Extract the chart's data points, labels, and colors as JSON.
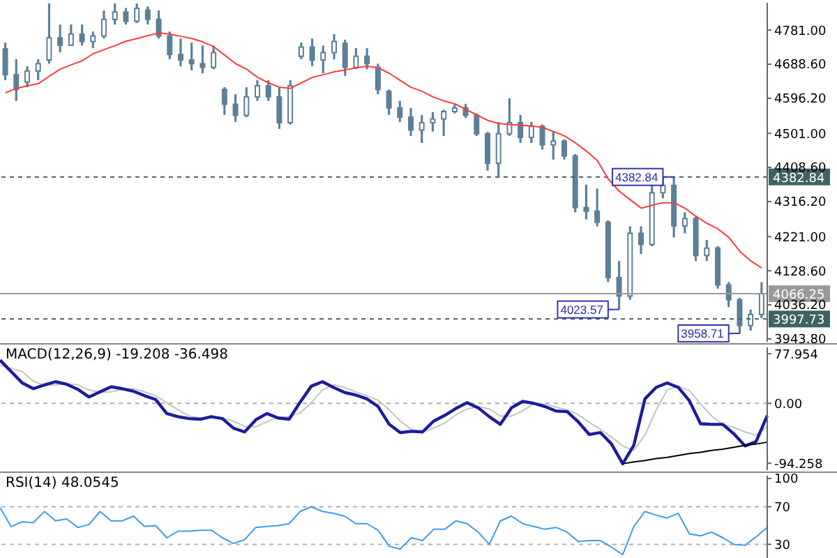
{
  "chart_data": [
    {
      "type": "candlestick",
      "color": "#5b8099",
      "tick_labels": "y",
      "categories": [
        null,
        null,
        null,
        null,
        null,
        null,
        null,
        null,
        null,
        null,
        null,
        null,
        null,
        null,
        null,
        null,
        null,
        null,
        null,
        null,
        null,
        null,
        null,
        null,
        null,
        null,
        null,
        null,
        null,
        null,
        null,
        null,
        null,
        null,
        null,
        null,
        null,
        null,
        null,
        null,
        null,
        null,
        null,
        null,
        null,
        null,
        null,
        null,
        null,
        null,
        null,
        null,
        null,
        null,
        null,
        null,
        null,
        null,
        null,
        null,
        null,
        null,
        null,
        null,
        null,
        null,
        null,
        null,
        null,
        null
      ],
      "ohlc": [
        [
          4730,
          4747,
          4645,
          4660
        ],
        [
          4660,
          4702,
          4589,
          4620
        ],
        [
          4640,
          4683,
          4626,
          4670
        ],
        [
          4670,
          4702,
          4645,
          4690
        ],
        [
          4700,
          4853,
          4690,
          4760
        ],
        [
          4760,
          4796,
          4721,
          4740
        ],
        [
          4740,
          4796,
          4739,
          4770
        ],
        [
          4770,
          4796,
          4739,
          4750
        ],
        [
          4750,
          4777,
          4732,
          4765
        ],
        [
          4765,
          4834,
          4758,
          4810
        ],
        [
          4810,
          4853,
          4796,
          4830
        ],
        [
          4830,
          4841,
          4796,
          4805
        ],
        [
          4805,
          4853,
          4800,
          4840
        ],
        [
          4835,
          4845,
          4796,
          4810
        ],
        [
          4810,
          4834,
          4758,
          4765
        ],
        [
          4765,
          4777,
          4702,
          4715
        ],
        [
          4715,
          4758,
          4683,
          4700
        ],
        [
          4700,
          4747,
          4672,
          4690
        ],
        [
          4690,
          4739,
          4664,
          4680
        ],
        [
          4680,
          4739,
          4675,
          4720
        ],
        [
          4620,
          4626,
          4551,
          4580
        ],
        [
          4580,
          4607,
          4532,
          4550
        ],
        [
          4550,
          4626,
          4545,
          4600
        ],
        [
          4600,
          4645,
          4589,
          4630
        ],
        [
          4630,
          4645,
          4589,
          4600
        ],
        [
          4600,
          4626,
          4513,
          4530
        ],
        [
          4530,
          4645,
          4525,
          4630
        ],
        [
          4710,
          4747,
          4702,
          4735
        ],
        [
          4735,
          4758,
          4683,
          4700
        ],
        [
          4700,
          4739,
          4664,
          4720
        ],
        [
          4720,
          4770,
          4702,
          4750
        ],
        [
          4745,
          4755,
          4657,
          4680
        ],
        [
          4680,
          4732,
          4675,
          4710
        ],
        [
          4710,
          4732,
          4675,
          4690
        ],
        [
          4680,
          4690,
          4607,
          4620
        ],
        [
          4615,
          4620,
          4551,
          4570
        ],
        [
          4570,
          4589,
          4532,
          4545
        ],
        [
          4545,
          4570,
          4494,
          4510
        ],
        [
          4510,
          4551,
          4475,
          4530
        ],
        [
          4530,
          4559,
          4506,
          4540
        ],
        [
          4540,
          4565,
          4494,
          4560
        ],
        [
          4560,
          4581,
          4555,
          4570
        ],
        [
          4570,
          4581,
          4543,
          4550
        ],
        [
          4550,
          4555,
          4494,
          4500
        ],
        [
          4500,
          4505,
          4400,
          4420
        ],
        [
          4420,
          4532,
          4381,
          4500
        ],
        [
          4500,
          4596,
          4494,
          4530
        ],
        [
          4530,
          4551,
          4475,
          4490
        ],
        [
          4490,
          4532,
          4475,
          4520
        ],
        [
          4520,
          4525,
          4457,
          4470
        ],
        [
          4470,
          4506,
          4430,
          4480
        ],
        [
          4480,
          4485,
          4430,
          4440
        ],
        [
          4440,
          4445,
          4287,
          4300
        ],
        [
          4300,
          4362,
          4268,
          4290
        ],
        [
          4290,
          4351,
          4249,
          4260
        ],
        [
          4260,
          4265,
          4098,
          4110
        ],
        [
          4110,
          4155,
          4023.57,
          4060
        ],
        [
          4060,
          4249,
          4050,
          4230
        ],
        [
          4230,
          4249,
          4174,
          4200
        ],
        [
          4200,
          4362,
          4195,
          4340
        ],
        [
          4340,
          4381,
          4325,
          4360
        ],
        [
          4360,
          4382.84,
          4219,
          4250
        ],
        [
          4250,
          4287,
          4230,
          4270
        ],
        [
          4270,
          4275,
          4155,
          4170
        ],
        [
          4170,
          4212,
          4155,
          4190
        ],
        [
          4190,
          4195,
          4080,
          4090
        ],
        [
          4090,
          4098,
          4030,
          4050
        ],
        [
          4050,
          4055,
          3958.71,
          3980
        ],
        [
          3980,
          4023,
          3966,
          4010
        ],
        [
          4010,
          4098,
          4000,
          4066.25
        ]
      ],
      "series": [
        {
          "type": "line",
          "color": "#ff3b3b",
          "values": [
            4611,
            4623,
            4630,
            4636,
            4656,
            4675,
            4687,
            4698,
            4717,
            4728,
            4739,
            4751,
            4758,
            4766,
            4773,
            4770,
            4764,
            4758,
            4749,
            4736,
            4713,
            4690,
            4675,
            4653,
            4638,
            4626,
            4623,
            4638,
            4653,
            4660,
            4668,
            4673,
            4679,
            4683,
            4679,
            4664,
            4645,
            4626,
            4615,
            4600,
            4589,
            4581,
            4566,
            4551,
            4536,
            4528,
            4525,
            4523,
            4521,
            4517,
            4506,
            4494,
            4475,
            4453,
            4427,
            4377,
            4344,
            4321,
            4298,
            4306,
            4313,
            4313,
            4298,
            4276,
            4257,
            4242,
            4219,
            4181,
            4155,
            4136
          ]
        }
      ],
      "ylim": [
        3936,
        4855
      ],
      "yticks": [
        {
          "value": 4781,
          "label": "4781.00"
        },
        {
          "value": 4688.6,
          "label": "4688.60"
        },
        {
          "value": 4596.2,
          "label": "4596.20"
        },
        {
          "value": 4501,
          "label": "4501.00"
        },
        {
          "value": 4408.6,
          "label": "4408.60"
        },
        {
          "value": 4316.2,
          "label": "4316.20"
        },
        {
          "value": 4221,
          "label": "4221.00"
        },
        {
          "value": 4128.6,
          "label": "4128.60"
        },
        {
          "value": 4036.2,
          "label": "4036.20"
        },
        {
          "value": 3943.8,
          "label": "3943.80"
        }
      ],
      "ref_lines": [
        {
          "axis": "y",
          "value": 4382.84,
          "label": "4382.84",
          "color": "#3f6363",
          "line_style": "dashed"
        },
        {
          "axis": "y",
          "value": 3997.73,
          "label": "3997.73",
          "color": "#3f6363",
          "line_style": "dashed"
        },
        {
          "axis": "y",
          "value": 4066.25,
          "label": "4066.25",
          "color": "#9a9a9a",
          "line_style": "solid"
        }
      ],
      "annotations": [
        {
          "text": "4382.84",
          "y": 4382.84
        },
        {
          "text": "4023.57",
          "y": 4023.57
        },
        {
          "text": "3958.71",
          "y": 3958.71
        }
      ]
    },
    {
      "type": "line",
      "title": "MACD(12,26,9) -19.208 -36.498",
      "tick_labels": "y",
      "categories": [
        null,
        null,
        null,
        null,
        null,
        null,
        null,
        null,
        null,
        null,
        null,
        null,
        null,
        null,
        null,
        null,
        null,
        null,
        null,
        null,
        null,
        null,
        null,
        null,
        null,
        null,
        null,
        null,
        null,
        null,
        null,
        null,
        null,
        null,
        null,
        null,
        null,
        null,
        null,
        null,
        null,
        null,
        null,
        null,
        null,
        null,
        null,
        null,
        null,
        null,
        null,
        null,
        null,
        null,
        null,
        null,
        null,
        null,
        null,
        null,
        null,
        null,
        null,
        null,
        null,
        null,
        null,
        null,
        null,
        null
      ],
      "series": [
        {
          "color": "#c4c4c4",
          "values": [
            60,
            55,
            50,
            35,
            28,
            29,
            31,
            29,
            21,
            17,
            18,
            22,
            23,
            18,
            12,
            1,
            -10,
            -20,
            -23,
            -23,
            -23,
            -28,
            -36,
            -37,
            -29,
            -22,
            -21,
            -15,
            1,
            21,
            29,
            25,
            18,
            12,
            5,
            -10,
            -28,
            -41,
            -45,
            -39,
            -31,
            -18,
            -9,
            -5,
            -9,
            -20,
            -20,
            -12,
            -1,
            -1,
            -6,
            -10,
            -18,
            -30,
            -41,
            -53,
            -67,
            -74,
            -50,
            -11,
            21,
            27,
            20,
            -1,
            -20,
            -33,
            -38,
            -45,
            -50,
            -36.498
          ]
        },
        {
          "color": "#1c1c9c",
          "values": [
            68,
            50,
            32,
            23,
            29,
            34,
            30,
            22,
            10,
            18,
            26,
            23,
            19,
            12,
            6,
            -16,
            -21,
            -24,
            -25,
            -21,
            -24,
            -39,
            -45,
            -26,
            -16,
            -23,
            -25,
            2,
            27,
            34,
            25,
            17,
            13,
            7,
            -5,
            -33,
            -46,
            -44,
            -45,
            -28,
            -19,
            -8,
            1,
            -7,
            -21,
            -33,
            -7,
            3,
            0,
            -5,
            -12,
            -13,
            -29,
            -49,
            -46,
            -64,
            -95,
            -66,
            7,
            25,
            32,
            25,
            4,
            -32,
            -33,
            -33,
            -48,
            -67,
            -60,
            -19.208
          ]
        },
        {
          "color": "#000000",
          "values": [
            null,
            null,
            null,
            null,
            null,
            null,
            null,
            null,
            null,
            null,
            null,
            null,
            null,
            null,
            null,
            null,
            null,
            null,
            null,
            null,
            null,
            null,
            null,
            null,
            null,
            null,
            null,
            null,
            null,
            null,
            null,
            null,
            null,
            null,
            null,
            null,
            null,
            null,
            null,
            null,
            null,
            null,
            null,
            null,
            null,
            null,
            null,
            null,
            null,
            null,
            null,
            null,
            null,
            null,
            null,
            null,
            -95,
            -92,
            -90,
            -87,
            -85,
            -82,
            -79,
            -77,
            -74,
            -72,
            -69,
            -66,
            -64,
            -61
          ]
        }
      ],
      "ylim": [
        -105,
        88
      ],
      "yticks": [
        {
          "value": 77.954,
          "label": "77.954"
        },
        {
          "value": 0,
          "label": "0.00"
        },
        {
          "value": -94.258,
          "label": "-94.258"
        }
      ],
      "ref_lines": [
        {
          "axis": "y",
          "value": 0,
          "color": "#b0b0b0",
          "line_style": "dashed"
        }
      ]
    },
    {
      "type": "line",
      "title": "RSI(14) 48.0545",
      "tick_labels": "y",
      "categories": [
        null,
        null,
        null,
        null,
        null,
        null,
        null,
        null,
        null,
        null,
        null,
        null,
        null,
        null,
        null,
        null,
        null,
        null,
        null,
        null,
        null,
        null,
        null,
        null,
        null,
        null,
        null,
        null,
        null,
        null,
        null,
        null,
        null,
        null,
        null,
        null,
        null,
        null,
        null,
        null,
        null,
        null,
        null,
        null,
        null,
        null,
        null,
        null,
        null,
        null,
        null,
        null,
        null,
        null,
        null,
        null,
        null,
        null,
        null,
        null,
        null,
        null,
        null,
        null,
        null,
        null,
        null,
        null,
        null,
        null
      ],
      "series": [
        {
          "color": "#3d9bf0",
          "values": [
            69,
            49,
            54,
            53,
            65,
            55,
            57,
            48,
            51,
            65,
            55,
            55,
            60,
            49,
            50,
            37,
            44,
            44,
            45,
            45,
            37,
            31,
            35,
            48,
            49,
            50,
            52,
            65,
            70,
            65,
            63,
            60,
            52,
            52,
            45,
            28,
            25,
            37,
            34,
            46,
            46,
            55,
            52,
            43,
            30,
            55,
            60,
            52,
            49,
            46,
            48,
            43,
            33,
            34,
            34,
            27,
            19,
            49,
            65,
            61,
            58,
            63,
            41,
            39,
            43,
            37,
            30,
            29,
            38,
            48.0545
          ]
        }
      ],
      "ylim": [
        14,
        103
      ],
      "yticks": [
        100,
        70,
        30
      ],
      "ref_lines": [
        {
          "axis": "y",
          "value": 70,
          "color": "#b0b0b0",
          "line_style": "dashed"
        },
        {
          "axis": "y",
          "value": 30,
          "color": "#b0b0b0",
          "line_style": "dashed"
        }
      ]
    }
  ]
}
